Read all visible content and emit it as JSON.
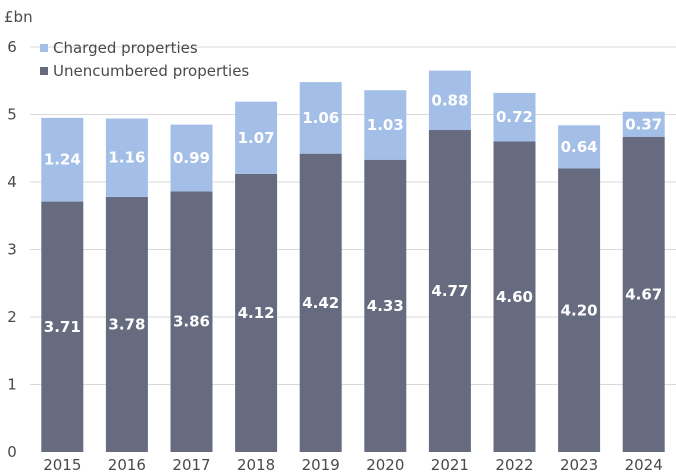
{
  "chart_data": {
    "type": "bar",
    "stacked": true,
    "unit": "£bn",
    "categories": [
      "2015",
      "2016",
      "2017",
      "2018",
      "2019",
      "2020",
      "2021",
      "2022",
      "2023",
      "2024"
    ],
    "series": [
      {
        "name": "Unencumbered properties",
        "color": "#676b80",
        "values": [
          3.71,
          3.78,
          3.86,
          4.12,
          4.42,
          4.33,
          4.77,
          4.6,
          4.2,
          4.67
        ]
      },
      {
        "name": "Charged properties",
        "color": "#a3bfe8",
        "values": [
          1.24,
          1.16,
          0.99,
          1.07,
          1.06,
          1.03,
          0.88,
          0.72,
          0.64,
          0.37
        ]
      }
    ],
    "data_labels": {
      "Unencumbered properties": [
        "3.71",
        "3.78",
        "3.86",
        "4.12",
        "4.42",
        "4.33",
        "4.77",
        "4.60",
        "4.20",
        "4.67"
      ],
      "Charged properties": [
        "1.24",
        "1.16",
        "0.99",
        "1.07",
        "1.06",
        "1.03",
        "0.88",
        "0.72",
        "0.64",
        "0.37"
      ]
    },
    "legend_order": [
      "Charged properties",
      "Unencumbered properties"
    ],
    "legend_position": "top-left",
    "ylim": [
      0,
      6
    ],
    "yticks": [
      "0",
      "1",
      "2",
      "3",
      "4",
      "5",
      "6"
    ],
    "grid": true
  }
}
